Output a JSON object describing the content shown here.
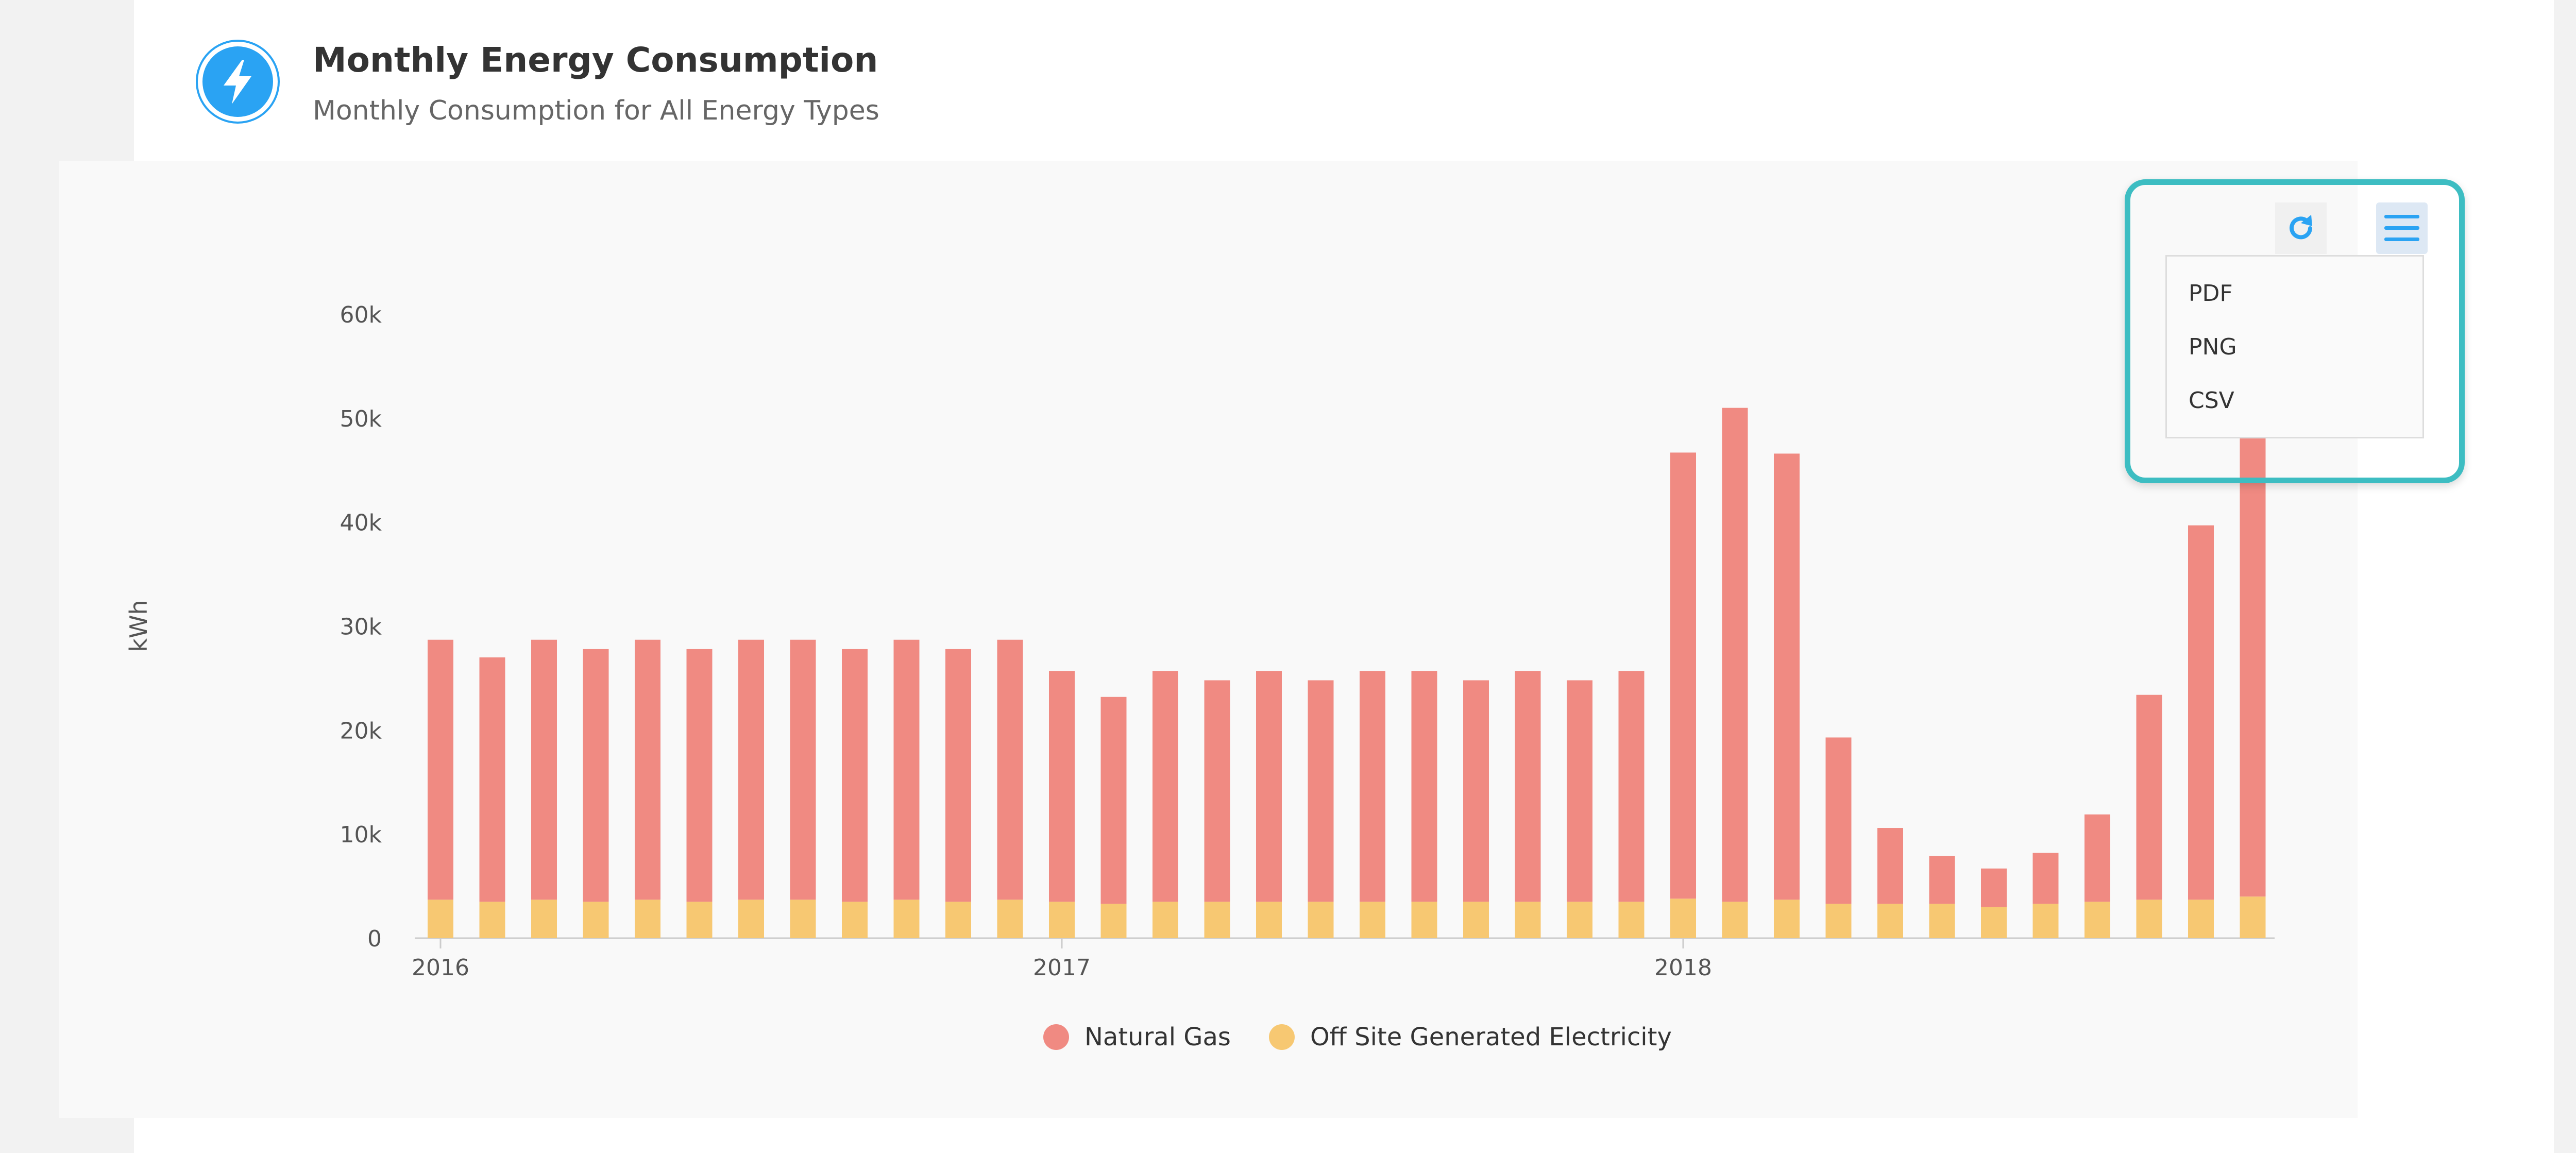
{
  "header": {
    "title": "Monthly Energy Consumption",
    "subtitle": "Monthly Consumption for All Energy Types"
  },
  "icons": {
    "header": "lightning-bolt-icon",
    "refresh": "refresh-icon",
    "menu": "hamburger-menu-icon"
  },
  "colors": {
    "natural_gas": "#f08a82",
    "electricity": "#f7c872",
    "accent": "#2aa3f3",
    "highlight": "#3dbdc2"
  },
  "export_menu": {
    "items": [
      "PDF",
      "PNG",
      "CSV"
    ]
  },
  "chart_data": {
    "type": "bar",
    "stacked": true,
    "xlabel": "",
    "ylabel": "kWh",
    "ylim": [
      0,
      60000
    ],
    "y_ticks": [
      0,
      10000,
      20000,
      30000,
      40000,
      50000,
      60000
    ],
    "y_tick_labels": [
      "0",
      "10k",
      "20k",
      "30k",
      "40k",
      "50k",
      "60k"
    ],
    "x_tick_labels": [
      "2016",
      "2017",
      "2018"
    ],
    "categories": [
      "2016-01",
      "2016-02",
      "2016-03",
      "2016-04",
      "2016-05",
      "2016-06",
      "2016-07",
      "2016-08",
      "2016-09",
      "2016-10",
      "2016-11",
      "2016-12",
      "2017-01",
      "2017-02",
      "2017-03",
      "2017-04",
      "2017-05",
      "2017-06",
      "2017-07",
      "2017-08",
      "2017-09",
      "2017-10",
      "2017-11",
      "2017-12",
      "2018-01",
      "2018-02",
      "2018-03",
      "2018-04",
      "2018-05",
      "2018-06",
      "2018-07",
      "2018-08",
      "2018-09",
      "2018-10",
      "2018-11",
      "2018-12"
    ],
    "series": [
      {
        "name": "Off Site Generated Electricity",
        "values": [
          3700,
          3500,
          3700,
          3500,
          3700,
          3500,
          3700,
          3700,
          3500,
          3700,
          3500,
          3700,
          3500,
          3300,
          3500,
          3500,
          3500,
          3500,
          3500,
          3500,
          3500,
          3500,
          3500,
          3500,
          3800,
          3500,
          3700,
          3300,
          3300,
          3300,
          3000,
          3300,
          3500,
          3700,
          3700,
          4000
        ]
      },
      {
        "name": "Natural Gas",
        "values": [
          25000,
          23500,
          25000,
          24300,
          25000,
          24300,
          25000,
          25000,
          24300,
          25000,
          24300,
          25000,
          22200,
          19900,
          22200,
          21300,
          22200,
          21300,
          22200,
          22200,
          21300,
          22200,
          21300,
          22200,
          42900,
          47500,
          42900,
          16000,
          7300,
          4600,
          3700,
          4900,
          8400,
          19700,
          36000,
          46000
        ]
      }
    ],
    "legend": {
      "position": "bottom"
    }
  }
}
